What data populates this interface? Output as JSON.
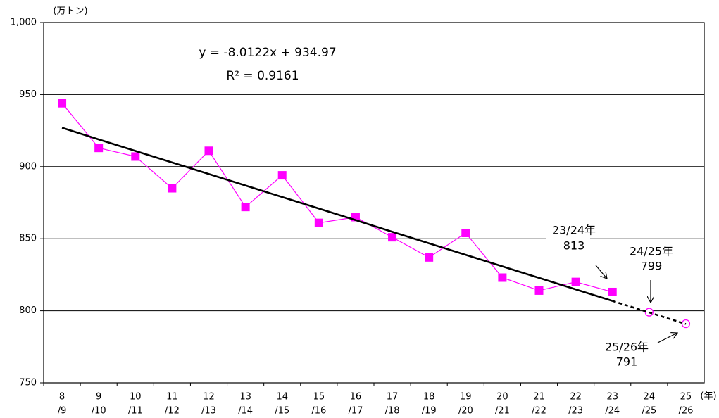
{
  "chart_data": {
    "type": "line",
    "y_unit": "(万トン)",
    "x_unit": "(年)",
    "equation": "y = -8.0122x + 934.97",
    "r_squared": "R² = 0.9161",
    "categories": [
      [
        "8",
        "/9"
      ],
      [
        "9",
        "/10"
      ],
      [
        "10",
        "/11"
      ],
      [
        "11",
        "/12"
      ],
      [
        "12",
        "/13"
      ],
      [
        "13",
        "/14"
      ],
      [
        "14",
        "/15"
      ],
      [
        "15",
        "/16"
      ],
      [
        "16",
        "/17"
      ],
      [
        "17",
        "/18"
      ],
      [
        "18",
        "/19"
      ],
      [
        "19",
        "/20"
      ],
      [
        "20",
        "/21"
      ],
      [
        "21",
        "/22"
      ],
      [
        "22",
        "/23"
      ],
      [
        "23",
        "/24"
      ],
      [
        "24",
        "/25"
      ],
      [
        "25",
        "/26"
      ]
    ],
    "series": [
      {
        "color": "#ff00ff",
        "marker": "square",
        "line": true,
        "values": [
          944,
          913,
          907,
          885,
          911,
          872,
          894,
          861,
          865,
          851,
          837,
          854,
          823,
          814,
          820,
          813,
          null,
          null
        ]
      },
      {
        "color": "#ff00ff",
        "marker": "circle",
        "line": false,
        "values": [
          null,
          null,
          null,
          null,
          null,
          null,
          null,
          null,
          null,
          null,
          null,
          null,
          null,
          null,
          null,
          null,
          799,
          791
        ]
      },
      {
        "color": "#000000",
        "marker": "none",
        "line": true,
        "dash": false,
        "values": [
          927.0,
          918.9,
          910.9,
          902.9,
          894.9,
          886.9,
          878.9,
          870.9,
          862.9,
          854.8,
          846.8,
          838.8,
          830.8,
          822.8,
          814.8,
          806.8,
          null,
          null
        ]
      },
      {
        "color": "#000000",
        "marker": "none",
        "line": true,
        "dash": true,
        "values": [
          null,
          null,
          null,
          null,
          null,
          null,
          null,
          null,
          null,
          null,
          null,
          null,
          null,
          null,
          null,
          806.8,
          798.8,
          790.8
        ]
      }
    ],
    "annotations": [
      [
        "23/24年",
        "813"
      ],
      [
        "24/25年",
        "799"
      ],
      [
        "25/26年",
        "791"
      ]
    ],
    "ylim": [
      750,
      1000
    ],
    "yticks": [
      750,
      800,
      850,
      900,
      950,
      {
        "value": 1000,
        "label": "1,000"
      }
    ],
    "grid": true
  }
}
